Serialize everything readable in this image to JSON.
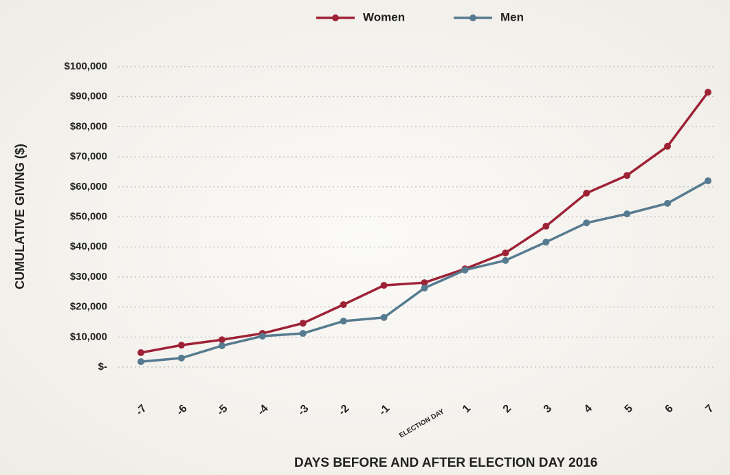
{
  "chart_data": {
    "type": "line",
    "x_label": "DAYS BEFORE AND AFTER ELECTION DAY 2016",
    "y_label": "CUMULATIVE GIVING ($)",
    "categories": [
      "-7",
      "-6",
      "-5",
      "-4",
      "-3",
      "-2",
      "-1",
      "ELECTION DAY",
      "1",
      "2",
      "3",
      "4",
      "5",
      "6",
      "7"
    ],
    "series": [
      {
        "name": "Women",
        "color": "#9e2236",
        "values": [
          4800,
          7300,
          9100,
          11200,
          14600,
          20800,
          27200,
          28100,
          32700,
          38000,
          46900,
          57900,
          63800,
          73500,
          91500
        ]
      },
      {
        "name": "Men",
        "color": "#567b90",
        "values": [
          1800,
          3000,
          7100,
          10300,
          11200,
          15300,
          16500,
          26300,
          32300,
          35500,
          41600,
          48000,
          51000,
          54500,
          62000
        ]
      }
    ],
    "ylim": [
      0,
      100000
    ],
    "yticks": [
      {
        "value": 0,
        "label": "$-"
      },
      {
        "value": 10000,
        "label": "$10,000"
      },
      {
        "value": 20000,
        "label": "$20,000"
      },
      {
        "value": 30000,
        "label": "$30,000"
      },
      {
        "value": 40000,
        "label": "$40,000"
      },
      {
        "value": 50000,
        "label": "$50,000"
      },
      {
        "value": 60000,
        "label": "$60,000"
      },
      {
        "value": 70000,
        "label": "$70,000"
      },
      {
        "value": 80000,
        "label": "$80,000"
      },
      {
        "value": 90000,
        "label": "$90,000"
      },
      {
        "value": 100000,
        "label": "$100,000"
      }
    ],
    "grid": true,
    "legend": "top"
  }
}
